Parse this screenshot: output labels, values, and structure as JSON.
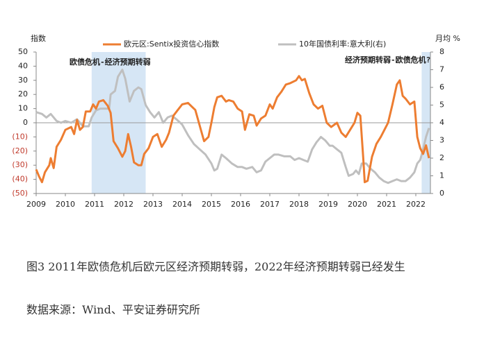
{
  "chart_data": {
    "type": "line",
    "left_axis_title": "指数",
    "right_axis_title": "月均 %",
    "annotations": [
      "欧债危机-经济预期转弱",
      "经济预期转弱-欧债危机?"
    ],
    "shaded_ranges": [
      [
        2010.9,
        2012.75
      ],
      [
        2022.2,
        2022.5
      ]
    ],
    "shade_color": "#d6e6f5",
    "xlim": [
      2009,
      2022.5
    ],
    "xticks": [
      2009,
      2010,
      2011,
      2012,
      2013,
      2014,
      2015,
      2016,
      2017,
      2018,
      2019,
      2020,
      2021,
      2022
    ],
    "ylim": [
      -50,
      50
    ],
    "yticks": [
      {
        "value": -50,
        "label": "(50)"
      },
      {
        "value": -40,
        "label": "(40)"
      },
      {
        "value": -30,
        "label": "(30)"
      },
      {
        "value": -20,
        "label": "(20)"
      },
      {
        "value": -10,
        "label": "(10)"
      },
      0,
      10,
      20,
      30,
      40,
      50
    ],
    "y2lim": [
      0,
      8
    ],
    "y2ticks": [
      0,
      1,
      2,
      3,
      4,
      5,
      6,
      7,
      8
    ],
    "legend": "top",
    "series": [
      {
        "name": "欧元区:Sentix投资信心指数",
        "color": "#ed7d31",
        "axis": "y",
        "x": [
          2009.0,
          2009.1,
          2009.2,
          2009.3,
          2009.45,
          2009.5,
          2009.6,
          2009.7,
          2009.85,
          2010.0,
          2010.2,
          2010.3,
          2010.4,
          2010.5,
          2010.6,
          2010.7,
          2010.85,
          2010.95,
          2011.05,
          2011.15,
          2011.3,
          2011.45,
          2011.55,
          2011.65,
          2011.8,
          2011.95,
          2012.05,
          2012.15,
          2012.25,
          2012.35,
          2012.5,
          2012.6,
          2012.7,
          2012.85,
          2013.0,
          2013.15,
          2013.3,
          2013.45,
          2013.55,
          2013.7,
          2013.85,
          2014.0,
          2014.2,
          2014.35,
          2014.45,
          2014.6,
          2014.75,
          2014.9,
          2015.0,
          2015.1,
          2015.2,
          2015.35,
          2015.5,
          2015.6,
          2015.75,
          2015.9,
          2016.05,
          2016.15,
          2016.3,
          2016.45,
          2016.55,
          2016.7,
          2016.85,
          2017.0,
          2017.1,
          2017.25,
          2017.4,
          2017.55,
          2017.7,
          2017.9,
          2018.0,
          2018.1,
          2018.2,
          2018.35,
          2018.5,
          2018.65,
          2018.8,
          2018.95,
          2019.1,
          2019.3,
          2019.45,
          2019.6,
          2019.75,
          2019.9,
          2020.0,
          2020.1,
          2020.2,
          2020.25,
          2020.35,
          2020.5,
          2020.65,
          2020.8,
          2020.95,
          2021.05,
          2021.2,
          2021.35,
          2021.45,
          2021.55,
          2021.65,
          2021.8,
          2021.95,
          2022.05,
          2022.15,
          2022.25,
          2022.35,
          2022.45
        ],
        "values": [
          -33,
          -38,
          -42,
          -35,
          -30,
          -25,
          -32,
          -17,
          -12,
          -5,
          -3,
          -8,
          2,
          -5,
          -3,
          8,
          8,
          13,
          10,
          15,
          16,
          12,
          7,
          -13,
          -18,
          -24,
          -20,
          -8,
          -17,
          -28,
          -30,
          -30,
          -22,
          -18,
          -10,
          -8,
          -17,
          -12,
          -7,
          5,
          9,
          13,
          14,
          11,
          9,
          -2,
          -13,
          -10,
          0,
          11,
          18,
          19,
          15,
          16,
          15,
          10,
          8,
          -5,
          6,
          5,
          -2,
          3,
          5,
          13,
          10,
          18,
          22,
          27,
          28,
          30,
          33,
          30,
          31,
          21,
          13,
          10,
          12,
          0,
          -3,
          0,
          -7,
          -10,
          -5,
          0,
          7,
          5,
          -25,
          -42,
          -41,
          -24,
          -15,
          -10,
          -4,
          0,
          13,
          27,
          30,
          19,
          17,
          13,
          15,
          -10,
          -18,
          -22,
          -16,
          -25
        ]
      },
      {
        "name": "10年国债利率:意大利(右)",
        "color": "#bfbfbf",
        "axis": "y2",
        "x": [
          2009.0,
          2009.2,
          2009.35,
          2009.5,
          2009.7,
          2009.85,
          2010.0,
          2010.2,
          2010.4,
          2010.6,
          2010.8,
          2010.9,
          2011.05,
          2011.2,
          2011.35,
          2011.5,
          2011.55,
          2011.7,
          2011.8,
          2011.95,
          2012.05,
          2012.2,
          2012.35,
          2012.5,
          2012.6,
          2012.75,
          2012.9,
          2013.05,
          2013.2,
          2013.35,
          2013.5,
          2013.65,
          2013.8,
          2014.0,
          2014.2,
          2014.4,
          2014.6,
          2014.8,
          2015.0,
          2015.1,
          2015.2,
          2015.35,
          2015.5,
          2015.7,
          2015.9,
          2016.05,
          2016.2,
          2016.4,
          2016.55,
          2016.7,
          2016.85,
          2017.0,
          2017.15,
          2017.3,
          2017.5,
          2017.7,
          2017.85,
          2018.0,
          2018.15,
          2018.3,
          2018.45,
          2018.6,
          2018.75,
          2018.9,
          2019.05,
          2019.15,
          2019.3,
          2019.45,
          2019.6,
          2019.7,
          2019.85,
          2019.95,
          2020.05,
          2020.15,
          2020.3,
          2020.45,
          2020.6,
          2020.75,
          2020.9,
          2021.05,
          2021.2,
          2021.35,
          2021.5,
          2021.65,
          2021.8,
          2021.95,
          2022.05,
          2022.15,
          2022.25,
          2022.35,
          2022.45
        ],
        "values": [
          4.6,
          4.5,
          4.3,
          4.5,
          4.1,
          4.0,
          4.1,
          4.0,
          4.2,
          3.8,
          3.8,
          4.3,
          4.7,
          4.8,
          4.8,
          4.8,
          5.6,
          5.8,
          6.6,
          7.0,
          6.5,
          5.2,
          5.8,
          6.0,
          5.9,
          5.0,
          4.6,
          4.3,
          4.6,
          4.0,
          4.3,
          4.4,
          4.2,
          3.9,
          3.3,
          2.8,
          2.5,
          2.2,
          1.7,
          1.3,
          1.4,
          2.2,
          2.0,
          1.7,
          1.5,
          1.5,
          1.4,
          1.5,
          1.2,
          1.3,
          1.8,
          2.0,
          2.2,
          2.2,
          2.1,
          2.1,
          1.9,
          2.0,
          1.9,
          1.8,
          2.5,
          2.9,
          3.2,
          3.0,
          2.7,
          2.7,
          2.5,
          2.3,
          1.5,
          1.0,
          1.1,
          1.3,
          1.1,
          1.7,
          1.7,
          1.4,
          1.2,
          0.9,
          0.7,
          0.6,
          0.7,
          0.8,
          0.7,
          0.7,
          0.9,
          1.2,
          1.7,
          1.9,
          2.5,
          3.2,
          3.7
        ]
      }
    ]
  },
  "caption": {
    "title": "图3  2011年欧债危机后欧元区经济预期转弱，2022年经济预期转弱已经发生",
    "source": "数据来源：Wind、平安证券研究所"
  }
}
